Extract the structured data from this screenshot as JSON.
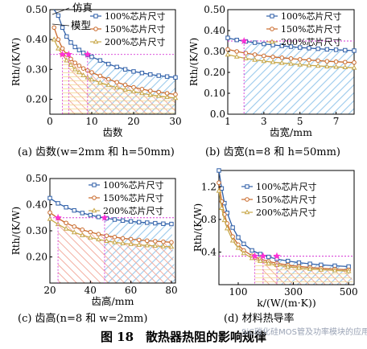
{
  "figure_title": "图 18　散热器热阻的影响规律",
  "watermark": "SiC碳化硅MOS管及功率模块的应用",
  "colors": {
    "s100": "#2f5fa8",
    "s150": "#c96a2c",
    "s200": "#c8a84a",
    "fill100": "#7fb5e0",
    "fill150": "#f0a090",
    "fill200": "#f3d57f",
    "guide": "#d63ad6",
    "star": "#ff2fd6",
    "sim": "#1a1a1a"
  },
  "chart_data": [
    {
      "id": "a",
      "type": "line",
      "caption": "(a)  齿数(w=2mm 和 h=50mm)",
      "xlabel": "齿数",
      "ylabel": "Rth/(K/W)",
      "xlim": [
        0,
        30
      ],
      "ylim": [
        0.15,
        0.5
      ],
      "xticks": [
        "0",
        "10",
        "20",
        "30"
      ],
      "yticks": [
        "0.20",
        "0.30",
        "0.40",
        "0.50"
      ],
      "xtick_values": [
        0,
        10,
        20,
        30
      ],
      "ytick_values": [
        0.2,
        0.3,
        0.4,
        0.5
      ],
      "sim_labels": [
        "仿真",
        "模型"
      ],
      "legend": [
        "100%芯片尺寸",
        "150%芯片尺寸",
        "200%芯片尺寸"
      ],
      "threshold": 0.35,
      "series": [
        {
          "name": "100%芯片尺寸",
          "key": "s100",
          "marker": "square",
          "x": [
            1,
            2,
            3,
            4,
            5,
            6,
            7,
            8,
            9,
            10,
            12,
            14,
            16,
            18,
            20,
            22,
            24,
            26,
            28,
            30
          ],
          "y": [
            0.52,
            0.48,
            0.44,
            0.41,
            0.39,
            0.375,
            0.365,
            0.355,
            0.348,
            0.342,
            0.33,
            0.318,
            0.308,
            0.3,
            0.293,
            0.288,
            0.283,
            0.279,
            0.276,
            0.273
          ]
        },
        {
          "name": "150%芯片尺寸",
          "key": "s150",
          "marker": "circle",
          "x": [
            1,
            2,
            3,
            4,
            5,
            6,
            7,
            8,
            9,
            10,
            12,
            14,
            16,
            18,
            20,
            22,
            24,
            26,
            28,
            30
          ],
          "y": [
            0.44,
            0.4,
            0.37,
            0.35,
            0.335,
            0.322,
            0.312,
            0.303,
            0.296,
            0.29,
            0.278,
            0.267,
            0.257,
            0.248,
            0.24,
            0.234,
            0.228,
            0.224,
            0.22,
            0.216
          ]
        },
        {
          "name": "200%芯片尺寸",
          "key": "s200",
          "marker": "triangle",
          "x": [
            1,
            2,
            3,
            4,
            5,
            6,
            7,
            8,
            9,
            10,
            12,
            14,
            16,
            18,
            20,
            22,
            24,
            26,
            28,
            30
          ],
          "y": [
            0.4,
            0.37,
            0.35,
            0.33,
            0.315,
            0.3,
            0.29,
            0.28,
            0.273,
            0.266,
            0.256,
            0.247,
            0.239,
            0.232,
            0.226,
            0.22,
            0.215,
            0.211,
            0.207,
            0.204
          ]
        }
      ],
      "crossings": [
        9,
        4.5,
        3
      ]
    },
    {
      "id": "b",
      "type": "line",
      "caption": "(b)  齿宽(n=8 和 h=50mm)",
      "xlabel": "齿宽/mm",
      "ylabel": "Rth/(K/W)",
      "xlim": [
        1,
        8
      ],
      "ylim": [
        0.0,
        0.5
      ],
      "xticks": [
        "1",
        "3",
        "5",
        "7"
      ],
      "yticks": [
        "0.0",
        "0.10",
        "0.20",
        "0.30",
        "0.40",
        "0.50"
      ],
      "xtick_values": [
        1,
        3,
        5,
        7
      ],
      "ytick_values": [
        0.0,
        0.1,
        0.2,
        0.3,
        0.4,
        0.5
      ],
      "legend": [
        "100%芯片尺寸",
        "150%芯片尺寸",
        "200%芯片尺寸"
      ],
      "threshold": 0.35,
      "series": [
        {
          "name": "100%芯片尺寸",
          "key": "s100",
          "marker": "square",
          "x": [
            1,
            1.5,
            2,
            2.5,
            3,
            3.5,
            4,
            4.5,
            5,
            5.5,
            6,
            6.5,
            7,
            7.5,
            8
          ],
          "y": [
            0.365,
            0.355,
            0.348,
            0.342,
            0.336,
            0.331,
            0.327,
            0.323,
            0.319,
            0.316,
            0.313,
            0.31,
            0.308,
            0.306,
            0.304
          ]
        },
        {
          "name": "150%芯片尺寸",
          "key": "s150",
          "marker": "circle",
          "x": [
            1,
            1.5,
            2,
            2.5,
            3,
            3.5,
            4,
            4.5,
            5,
            5.5,
            6,
            6.5,
            7,
            7.5,
            8
          ],
          "y": [
            0.31,
            0.3,
            0.292,
            0.285,
            0.279,
            0.274,
            0.27,
            0.266,
            0.262,
            0.259,
            0.256,
            0.253,
            0.251,
            0.249,
            0.247
          ]
        },
        {
          "name": "200%芯片尺寸",
          "key": "s200",
          "marker": "triangle",
          "x": [
            1,
            1.5,
            2,
            2.5,
            3,
            3.5,
            4,
            4.5,
            5,
            5.5,
            6,
            6.5,
            7,
            7.5,
            8
          ],
          "y": [
            0.285,
            0.275,
            0.267,
            0.26,
            0.254,
            0.249,
            0.245,
            0.241,
            0.237,
            0.234,
            0.231,
            0.228,
            0.226,
            0.224,
            0.222
          ]
        }
      ],
      "crossings": [
        1.9
      ]
    },
    {
      "id": "c",
      "type": "line",
      "caption": "(c)  齿高(n=8 和 w=2mm)",
      "xlabel": "齿高/mm",
      "ylabel": "Rth/(K/W)",
      "xlim": [
        20,
        82
      ],
      "ylim": [
        0.1,
        0.5
      ],
      "xticks": [
        "20",
        "40",
        "60",
        "80"
      ],
      "yticks": [
        "0.20",
        "0.30",
        "0.40",
        "0.50"
      ],
      "xtick_values": [
        20,
        40,
        60,
        80
      ],
      "ytick_values": [
        0.2,
        0.3,
        0.4,
        0.5
      ],
      "legend": [
        "100%芯片尺寸",
        "150%芯片尺寸",
        "200%芯片尺寸"
      ],
      "threshold": 0.35,
      "series": [
        {
          "name": "100%芯片尺寸",
          "key": "s100",
          "marker": "square",
          "x": [
            20,
            24,
            28,
            32,
            36,
            40,
            44,
            48,
            52,
            56,
            60,
            64,
            68,
            72,
            76,
            80
          ],
          "y": [
            0.425,
            0.405,
            0.39,
            0.378,
            0.368,
            0.36,
            0.353,
            0.348,
            0.343,
            0.339,
            0.336,
            0.333,
            0.331,
            0.329,
            0.327,
            0.326
          ]
        },
        {
          "name": "150%芯片尺寸",
          "key": "s150",
          "marker": "circle",
          "x": [
            20,
            24,
            28,
            32,
            36,
            40,
            44,
            48,
            52,
            56,
            60,
            64,
            68,
            72,
            76,
            80
          ],
          "y": [
            0.37,
            0.348,
            0.33,
            0.316,
            0.304,
            0.295,
            0.287,
            0.281,
            0.276,
            0.271,
            0.268,
            0.265,
            0.262,
            0.26,
            0.258,
            0.256
          ]
        },
        {
          "name": "200%芯片尺寸",
          "key": "s200",
          "marker": "triangle",
          "x": [
            20,
            24,
            28,
            32,
            36,
            40,
            44,
            48,
            52,
            56,
            60,
            64,
            68,
            72,
            76,
            80
          ],
          "y": [
            0.345,
            0.325,
            0.308,
            0.294,
            0.283,
            0.274,
            0.267,
            0.261,
            0.256,
            0.252,
            0.249,
            0.246,
            0.244,
            0.242,
            0.24,
            0.239
          ]
        }
      ],
      "crossings": [
        47,
        24
      ]
    },
    {
      "id": "d",
      "type": "line",
      "caption": "(d)  材料热导率",
      "xlabel": "k/(W/(m·K))",
      "ylabel": "Rth/(K/W)",
      "xlim": [
        30,
        520
      ],
      "ylim": [
        0.0,
        1.4
      ],
      "xticks": [
        "100",
        "300",
        "500"
      ],
      "yticks": [
        "0.4",
        "0.8",
        "1.2"
      ],
      "xtick_values": [
        100,
        300,
        500
      ],
      "ytick_values": [
        0.4,
        0.8,
        1.2
      ],
      "legend": [
        "100%芯片尺寸",
        "150%芯片尺寸",
        "200%芯片尺寸"
      ],
      "threshold": 0.35,
      "series": [
        {
          "name": "100%芯片尺寸",
          "key": "s100",
          "marker": "square",
          "x": [
            30,
            40,
            50,
            60,
            80,
            100,
            120,
            150,
            180,
            210,
            240,
            280,
            320,
            360,
            400,
            450,
            500
          ],
          "y": [
            1.4,
            1.18,
            1.0,
            0.88,
            0.7,
            0.58,
            0.5,
            0.42,
            0.375,
            0.34,
            0.315,
            0.29,
            0.27,
            0.255,
            0.243,
            0.232,
            0.222
          ]
        },
        {
          "name": "150%芯片尺寸",
          "key": "s150",
          "marker": "circle",
          "x": [
            30,
            40,
            50,
            60,
            80,
            100,
            120,
            150,
            180,
            210,
            240,
            280,
            320,
            360,
            400,
            450,
            500
          ],
          "y": [
            1.25,
            1.02,
            0.86,
            0.75,
            0.59,
            0.49,
            0.42,
            0.355,
            0.315,
            0.285,
            0.262,
            0.24,
            0.224,
            0.211,
            0.2,
            0.19,
            0.182
          ]
        },
        {
          "name": "200%芯片尺寸",
          "key": "s200",
          "marker": "triangle",
          "x": [
            30,
            40,
            50,
            60,
            80,
            100,
            120,
            150,
            180,
            210,
            240,
            280,
            320,
            360,
            400,
            450,
            500
          ],
          "y": [
            1.15,
            0.94,
            0.79,
            0.69,
            0.54,
            0.45,
            0.385,
            0.325,
            0.29,
            0.262,
            0.24,
            0.22,
            0.205,
            0.193,
            0.183,
            0.174,
            0.166
          ]
        }
      ],
      "crossings": [
        240,
        190,
        160
      ]
    }
  ]
}
